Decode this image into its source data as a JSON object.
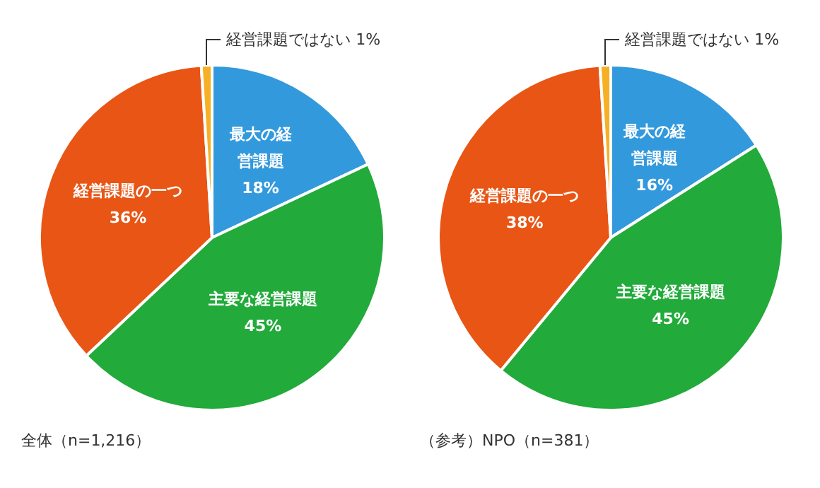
{
  "chart_data": [
    {
      "type": "pie",
      "title": "全体（n=1,216）",
      "categories": [
        "最大の経営課題",
        "主要な経営課題",
        "経営課題の一つ",
        "経営課題ではない"
      ],
      "values": [
        18,
        45,
        36,
        1
      ],
      "value_labels": [
        "18%",
        "45%",
        "36%",
        "1%"
      ],
      "colors": [
        "#3399dd",
        "#22aa3a",
        "#e85515",
        "#f5b025"
      ]
    },
    {
      "type": "pie",
      "title": "（参考）NPO（n=381）",
      "categories": [
        "最大の経営課題",
        "主要な経営課題",
        "経営課題の一つ",
        "経営課題ではない"
      ],
      "values": [
        16,
        45,
        38,
        1
      ],
      "value_labels": [
        "16%",
        "45%",
        "38%",
        "1%"
      ],
      "colors": [
        "#3399dd",
        "#22aa3a",
        "#e85515",
        "#f5b025"
      ]
    }
  ]
}
